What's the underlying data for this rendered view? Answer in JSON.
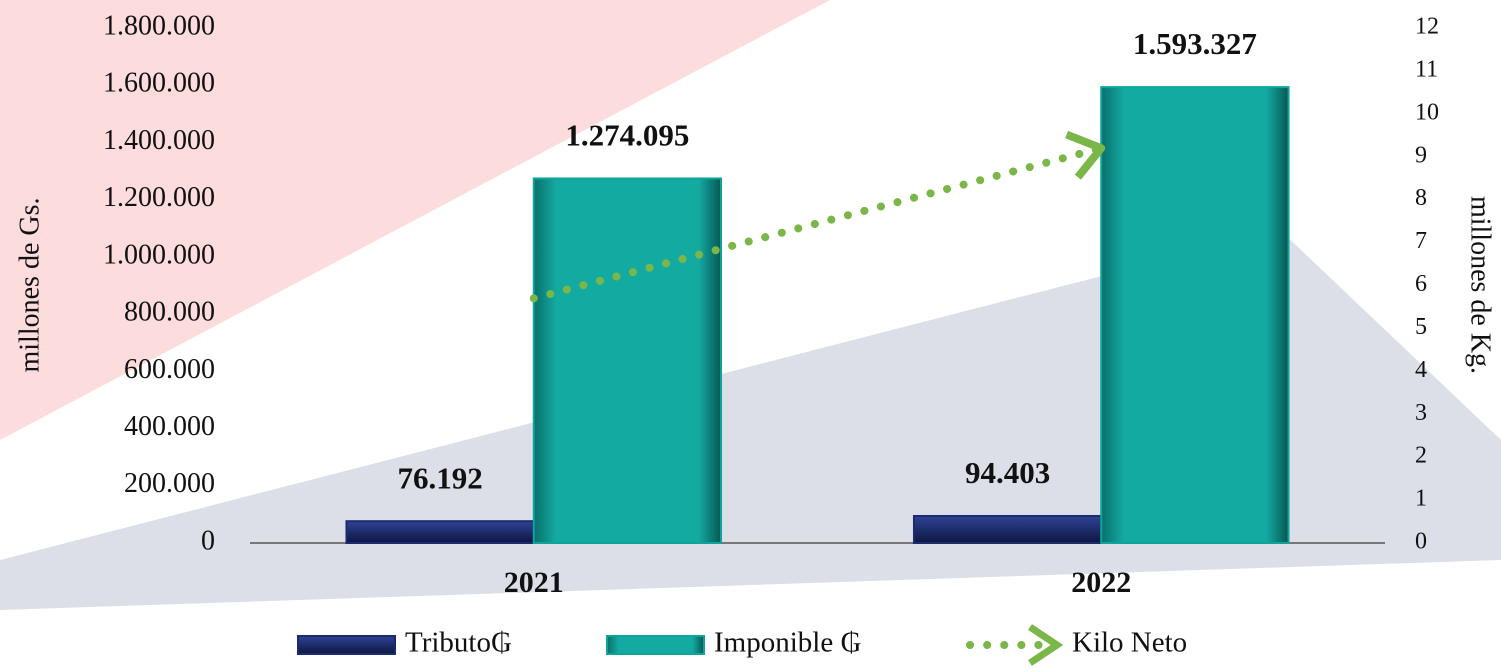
{
  "chart_data": {
    "type": "bar",
    "categories": [
      "2021",
      "2022"
    ],
    "series": [
      {
        "name": "Tributo₲",
        "color": "#1c2b6e",
        "values": [
          76192,
          94403
        ],
        "value_labels": [
          "76.192",
          "94.403"
        ]
      },
      {
        "name": "Imponible ₲",
        "color": "#10a39b",
        "values": [
          1274095,
          1593327
        ],
        "value_labels": [
          "1.274.095",
          "1.593.327"
        ]
      },
      {
        "name": "Kilo Neto",
        "type": "line",
        "color": "#7ab648",
        "axis": "y2",
        "values": [
          5.7,
          9.2
        ]
      }
    ],
    "ylabel": "millones de Gs.",
    "y2label": "millones de Kg.",
    "ylim": [
      0,
      1800000
    ],
    "yticks": [
      0,
      {
        "value": 200000,
        "label": "200.000"
      },
      {
        "value": 400000,
        "label": "400.000"
      },
      {
        "value": 600000,
        "label": "600.000"
      },
      {
        "value": 800000,
        "label": "800.000"
      },
      {
        "value": 1000000,
        "label": "1.000.000"
      },
      {
        "value": 1200000,
        "label": "1.200.000"
      },
      {
        "value": 1400000,
        "label": "1.400.000"
      },
      {
        "value": 1600000,
        "label": "1.600.000"
      },
      {
        "value": 1800000,
        "label": "1.800.000"
      }
    ],
    "y2lim": [
      0,
      12
    ],
    "y2ticks": [
      0,
      1,
      2,
      3,
      4,
      5,
      6,
      7,
      8,
      9,
      10,
      11,
      12
    ],
    "legend": "bottom"
  }
}
